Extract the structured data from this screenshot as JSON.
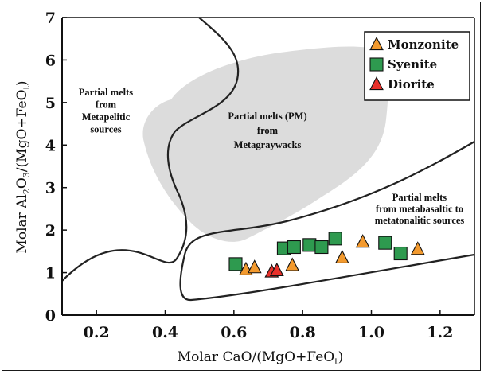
{
  "chart_data": {
    "type": "scatter",
    "title": "",
    "xlabel": "Molar CaO/(MgO+FeOt)",
    "ylabel": "Molar Al2O3/(MgO+FeOt)",
    "xlim": [
      0.1,
      1.3
    ],
    "ylim": [
      0,
      7
    ],
    "xticks": [
      "0.2",
      "0.4",
      "0.6",
      "0.8",
      "1.0",
      "1.2"
    ],
    "yticks": [
      "0",
      "1",
      "2",
      "3",
      "4",
      "5",
      "6",
      "7"
    ],
    "grid": false,
    "legend_position": "top-right",
    "series": [
      {
        "name": "Monzonite",
        "marker": "triangle",
        "color": "#f39a2e",
        "points": [
          [
            0.635,
            1.07
          ],
          [
            0.66,
            1.12
          ],
          [
            0.77,
            1.17
          ],
          [
            0.915,
            1.35
          ],
          [
            0.975,
            1.72
          ],
          [
            1.135,
            1.55
          ]
        ]
      },
      {
        "name": "Syenite",
        "marker": "square",
        "color": "#2e9a4f",
        "points": [
          [
            0.605,
            1.2
          ],
          [
            0.745,
            1.57
          ],
          [
            0.775,
            1.6
          ],
          [
            0.82,
            1.65
          ],
          [
            0.855,
            1.6
          ],
          [
            0.895,
            1.8
          ],
          [
            1.04,
            1.7
          ],
          [
            1.085,
            1.45
          ]
        ]
      },
      {
        "name": "Diorite",
        "marker": "triangle",
        "color": "#e8302a",
        "points": [
          [
            0.71,
            1.02
          ],
          [
            0.725,
            1.05
          ]
        ]
      }
    ],
    "annotations": [
      {
        "lines": [
          "Partial melts",
          "from",
          "Metapelitic",
          "sources"
        ]
      },
      {
        "lines": [
          "Partial melts (PM)",
          "from",
          "Metagraywacks"
        ]
      },
      {
        "lines": [
          "Partial melts",
          "from metabasaltic to",
          "metatonalitic sources"
        ]
      }
    ]
  }
}
